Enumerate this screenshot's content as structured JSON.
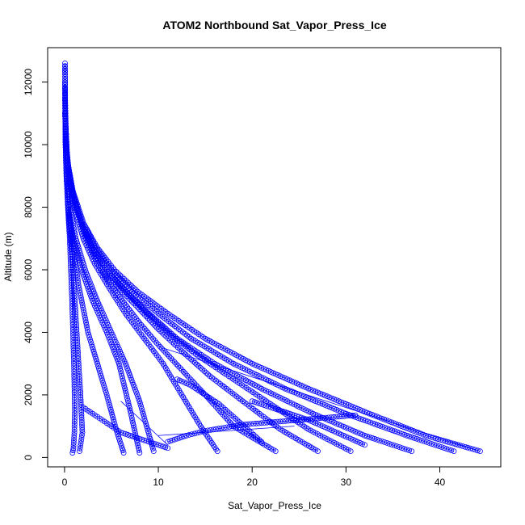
{
  "chart_data": {
    "type": "scatter",
    "title": "ATOM2 Northbound Sat_Vapor_Press_Ice",
    "xlabel": "Sat_Vapor_Press_Ice",
    "ylabel": "Altitude (m)",
    "xlim": [
      -1.8,
      46.5
    ],
    "ylim": [
      -300,
      13100
    ],
    "x_ticks": [
      0,
      10,
      20,
      30,
      40
    ],
    "y_ticks": [
      0,
      2000,
      4000,
      6000,
      8000,
      10000,
      12000
    ],
    "point_color": "#0000ff",
    "marker": "open-circle",
    "line_connected": true,
    "grid": false,
    "legend": "none",
    "profiles": [
      {
        "x": [
          0.05,
          0.06,
          0.08,
          0.12,
          0.2,
          0.35,
          0.55,
          0.8,
          1.0,
          1.1,
          1.05,
          0.95,
          0.85
        ],
        "y": [
          12600,
          12000,
          11000,
          10000,
          9000,
          8000,
          7000,
          5000,
          3000,
          1500,
          800,
          300,
          150
        ]
      },
      {
        "x": [
          0.05,
          0.07,
          0.1,
          0.15,
          0.3,
          0.5,
          0.8,
          1.1,
          1.4,
          1.7,
          1.9,
          1.6
        ],
        "y": [
          12500,
          11500,
          10500,
          9500,
          8500,
          7500,
          6500,
          5000,
          3500,
          2000,
          800,
          200
        ]
      },
      {
        "x": [
          0.05,
          0.1,
          0.2,
          0.4,
          0.8,
          1.5,
          2.5,
          3.5,
          4.5,
          5.5,
          6.3
        ],
        "y": [
          12000,
          10000,
          9000,
          8000,
          7000,
          5500,
          4000,
          3000,
          2000,
          900,
          150
        ]
      },
      {
        "x": [
          0.05,
          0.1,
          0.2,
          0.4,
          0.9,
          1.8,
          3.0,
          4.5,
          5.8,
          7.0,
          8.0
        ],
        "y": [
          12000,
          10000,
          9000,
          8000,
          7000,
          6000,
          5000,
          4000,
          3000,
          1500,
          150
        ]
      },
      {
        "x": [
          0.05,
          0.1,
          0.25,
          0.6,
          1.2,
          2.2,
          3.5,
          5.0,
          6.5,
          8.0,
          9.5
        ],
        "y": [
          11800,
          10000,
          9000,
          8000,
          7000,
          6000,
          5000,
          4000,
          3000,
          1800,
          200
        ]
      },
      {
        "x": [
          0.05,
          0.15,
          0.4,
          1.0,
          2.0,
          3.2,
          4.8,
          6.5,
          8.5,
          10.5,
          12.5,
          14.5,
          16.3
        ],
        "y": [
          11500,
          10000,
          9000,
          8000,
          7000,
          6200,
          5400,
          4600,
          3800,
          3000,
          2000,
          1000,
          200
        ]
      },
      {
        "x": [
          0.05,
          0.2,
          0.5,
          1.2,
          2.3,
          3.5,
          4.8,
          6.2,
          8.0,
          10.0,
          12.5,
          15.0,
          18.0,
          22.5
        ],
        "y": [
          11500,
          10000,
          9000,
          8000,
          7000,
          6200,
          5600,
          5000,
          4300,
          3600,
          2800,
          2000,
          1000,
          200
        ]
      },
      {
        "x": [
          0.05,
          0.3,
          0.8,
          1.8,
          3.0,
          4.2,
          5.8,
          7.8,
          10.0,
          12.5,
          15.5,
          19.0,
          23.0,
          27.0
        ],
        "y": [
          11000,
          9500,
          8500,
          7500,
          6600,
          6000,
          5400,
          4800,
          4100,
          3400,
          2600,
          1800,
          900,
          200
        ]
      },
      {
        "x": [
          0.05,
          0.3,
          0.8,
          1.8,
          3.0,
          4.5,
          6.3,
          8.5,
          11.0,
          14.0,
          17.5,
          21.5,
          26.0,
          30.5
        ],
        "y": [
          11000,
          9500,
          8500,
          7500,
          6700,
          6000,
          5400,
          4700,
          4000,
          3300,
          2600,
          1800,
          900,
          200
        ]
      },
      {
        "x": [
          0.05,
          0.3,
          0.8,
          1.8,
          3.0,
          4.5,
          6.5,
          9.0,
          12.0,
          16.0,
          21.0,
          26.5,
          32.0,
          37.0
        ],
        "y": [
          11000,
          9500,
          8500,
          7500,
          6700,
          6000,
          5300,
          4600,
          3800,
          3000,
          2200,
          1400,
          700,
          200
        ]
      },
      {
        "x": [
          0.05,
          0.3,
          0.9,
          2.0,
          3.3,
          5.0,
          7.2,
          10.0,
          13.5,
          18.0,
          23.5,
          30.0,
          36.5,
          41.5
        ],
        "y": [
          11000,
          9500,
          8500,
          7500,
          6700,
          6000,
          5300,
          4600,
          3800,
          3000,
          2200,
          1400,
          700,
          200
        ]
      },
      {
        "x": [
          0.05,
          0.3,
          0.9,
          2.0,
          3.5,
          5.3,
          7.8,
          11.0,
          15.0,
          20.0,
          26.0,
          32.5,
          38.5,
          44.3
        ],
        "y": [
          11000,
          9500,
          8500,
          7500,
          6700,
          6000,
          5300,
          4600,
          3800,
          3000,
          2200,
          1400,
          700,
          200
        ]
      },
      {
        "x": [
          2.0,
          3.0,
          4.0,
          5.0,
          6.0,
          7.0,
          8.0,
          9.0,
          10.0,
          11.0
        ],
        "y": [
          1600,
          1400,
          1200,
          1000,
          800,
          700,
          600,
          500,
          400,
          300
        ]
      },
      {
        "x": [
          11.0,
          13.0,
          15.0,
          17.0,
          19.0,
          21.0,
          23.0,
          25.0,
          27.0,
          29.0,
          31.0
        ],
        "y": [
          500,
          700,
          850,
          950,
          1050,
          1100,
          1150,
          1200,
          1250,
          1300,
          1350
        ]
      },
      {
        "x": [
          12.0,
          13.5,
          15.0,
          16.5,
          18.0,
          19.5,
          21.0
        ],
        "y": [
          2500,
          2300,
          2000,
          1700,
          1300,
          900,
          500
        ]
      },
      {
        "x": [
          20.0,
          21.5,
          23.0,
          24.5,
          26.0,
          27.5,
          29.0,
          30.5,
          32.0
        ],
        "y": [
          1800,
          1650,
          1500,
          1350,
          1200,
          1000,
          800,
          600,
          400
        ]
      }
    ],
    "straight_segments": [
      {
        "x": [
          10.5,
          44.3
        ],
        "y": [
          3500,
          200
        ]
      },
      {
        "x": [
          6.0,
          11.0
        ],
        "y": [
          1800,
          400
        ]
      },
      {
        "x": [
          10.0,
          24.5
        ],
        "y": [
          700,
          1000
        ]
      }
    ]
  }
}
